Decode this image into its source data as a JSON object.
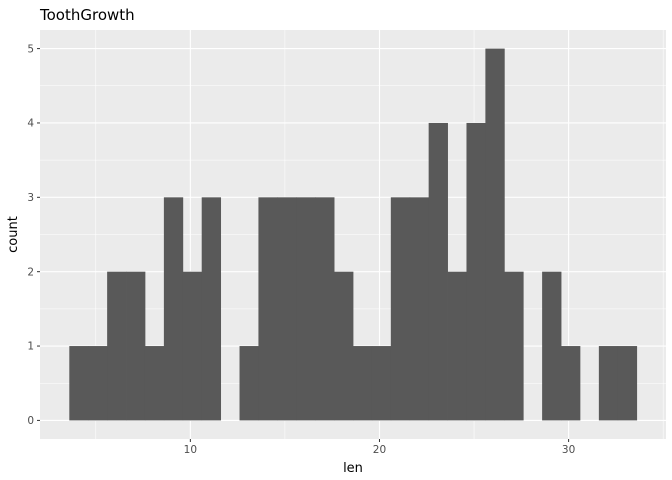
{
  "chart_data": {
    "type": "bar",
    "title": "ToothGrowth",
    "xlabel": "len",
    "ylabel": "count",
    "bin_width": 1.0,
    "bins": [
      {
        "start": 3.6,
        "end": 4.6,
        "count": 1
      },
      {
        "start": 4.6,
        "end": 5.6,
        "count": 1
      },
      {
        "start": 5.6,
        "end": 6.6,
        "count": 2
      },
      {
        "start": 6.6,
        "end": 7.6,
        "count": 2
      },
      {
        "start": 7.6,
        "end": 8.6,
        "count": 1
      },
      {
        "start": 8.6,
        "end": 9.6,
        "count": 3
      },
      {
        "start": 9.6,
        "end": 10.6,
        "count": 2
      },
      {
        "start": 10.6,
        "end": 11.6,
        "count": 3
      },
      {
        "start": 11.6,
        "end": 12.6,
        "count": 0
      },
      {
        "start": 12.6,
        "end": 13.6,
        "count": 1
      },
      {
        "start": 13.6,
        "end": 14.6,
        "count": 3
      },
      {
        "start": 14.6,
        "end": 15.6,
        "count": 3
      },
      {
        "start": 15.6,
        "end": 16.6,
        "count": 3
      },
      {
        "start": 16.6,
        "end": 17.6,
        "count": 3
      },
      {
        "start": 17.6,
        "end": 18.6,
        "count": 2
      },
      {
        "start": 18.6,
        "end": 19.6,
        "count": 1
      },
      {
        "start": 19.6,
        "end": 20.6,
        "count": 1
      },
      {
        "start": 20.6,
        "end": 21.6,
        "count": 3
      },
      {
        "start": 21.6,
        "end": 22.6,
        "count": 3
      },
      {
        "start": 22.6,
        "end": 23.6,
        "count": 4
      },
      {
        "start": 23.6,
        "end": 24.6,
        "count": 2
      },
      {
        "start": 24.6,
        "end": 25.6,
        "count": 4
      },
      {
        "start": 25.6,
        "end": 26.6,
        "count": 5
      },
      {
        "start": 26.6,
        "end": 27.6,
        "count": 2
      },
      {
        "start": 27.6,
        "end": 28.6,
        "count": 0
      },
      {
        "start": 28.6,
        "end": 29.6,
        "count": 2
      },
      {
        "start": 29.6,
        "end": 30.6,
        "count": 1
      },
      {
        "start": 30.6,
        "end": 31.6,
        "count": 0
      },
      {
        "start": 31.6,
        "end": 32.6,
        "count": 1
      },
      {
        "start": 32.6,
        "end": 33.6,
        "count": 1
      }
    ],
    "xlim": [
      2.05,
      35.15
    ],
    "ylim": [
      -0.25,
      5.25
    ],
    "x_ticks": [
      10,
      20,
      30
    ],
    "x_tick_labels": [
      "10",
      "20",
      "30"
    ],
    "y_ticks": [
      0,
      1,
      2,
      3,
      4,
      5
    ],
    "y_tick_labels": [
      "0",
      "1",
      "2",
      "3",
      "4",
      "5"
    ],
    "grid": true,
    "colors": {
      "panel_background": "#EBEBEB",
      "grid_major": "#FFFFFF",
      "bar_fill": "#595959",
      "tick_text": "#4D4D4D",
      "tick_mark": "#333333"
    }
  }
}
